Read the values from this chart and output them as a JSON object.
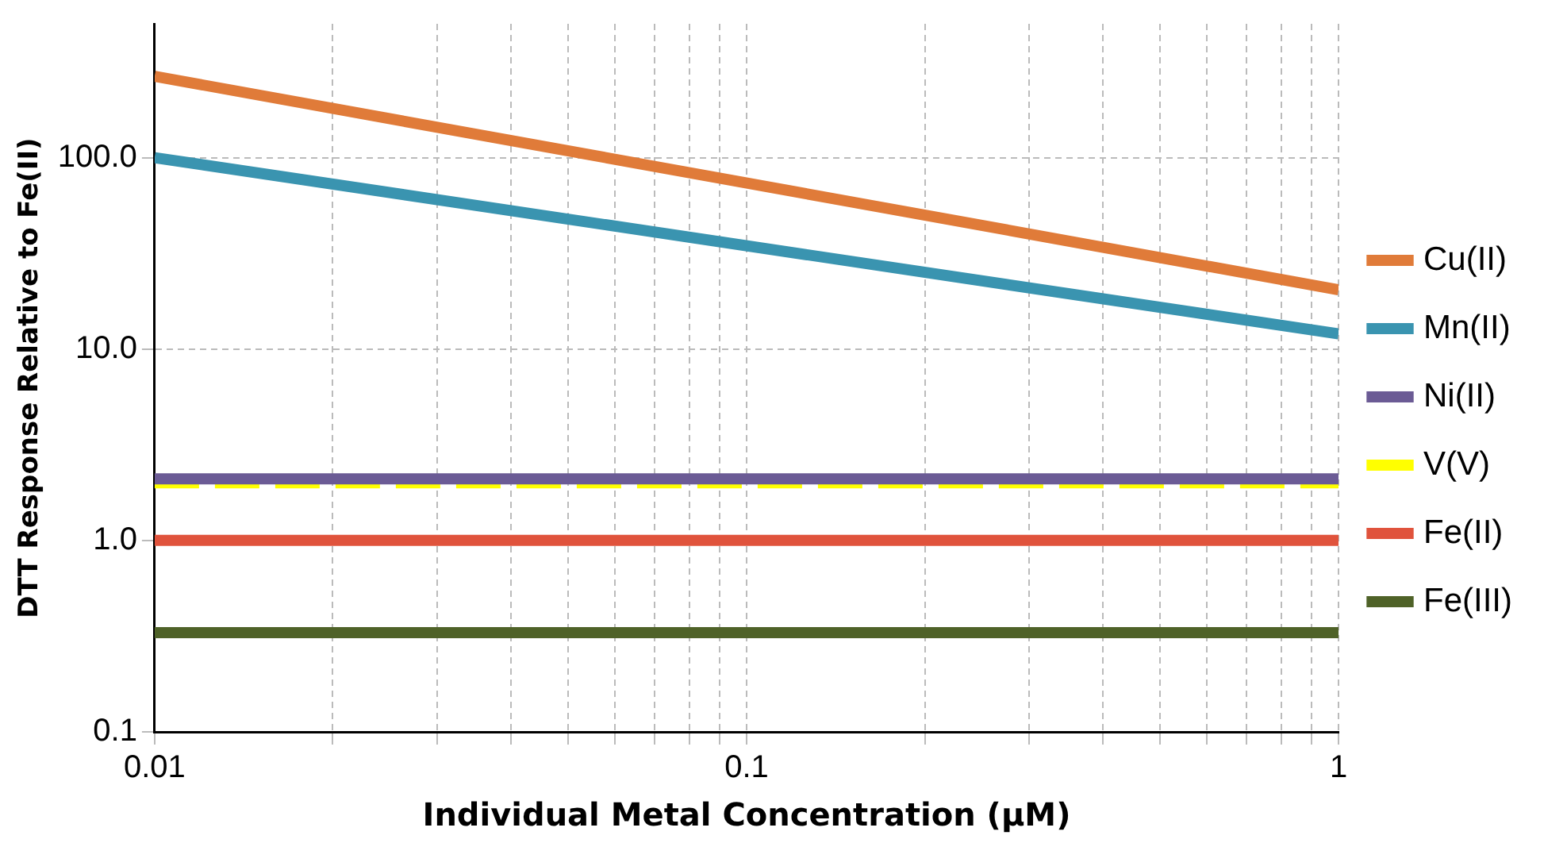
{
  "chart_data": {
    "type": "line",
    "xlabel": "Individual Metal Concentration (µM)",
    "ylabel": "DTT Response Relative to Fe(II)",
    "log": "xy",
    "x": [
      0.01,
      1
    ],
    "xlim": [
      0.01,
      1
    ],
    "ylim": [
      0.1,
      500
    ],
    "xticks": [
      0.01,
      {
        "value": 0.02,
        "label": null
      },
      {
        "value": 0.03,
        "label": null
      },
      {
        "value": 0.04,
        "label": null
      },
      {
        "value": 0.05,
        "label": null
      },
      {
        "value": 0.06,
        "label": null
      },
      {
        "value": 0.07,
        "label": null
      },
      {
        "value": 0.08,
        "label": null
      },
      {
        "value": 0.09,
        "label": null
      },
      0.1,
      {
        "value": 0.2,
        "label": null
      },
      {
        "value": 0.3,
        "label": null
      },
      {
        "value": 0.4,
        "label": null
      },
      {
        "value": 0.5,
        "label": null
      },
      {
        "value": 0.6,
        "label": null
      },
      {
        "value": 0.7,
        "label": null
      },
      {
        "value": 0.8,
        "label": null
      },
      {
        "value": 0.9,
        "label": null
      },
      1
    ],
    "yticks": [
      {
        "value": 0.1,
        "label": "0.1"
      },
      {
        "value": 1,
        "label": "1.0"
      },
      {
        "value": 10,
        "label": "10.0"
      },
      {
        "value": 100,
        "label": "100.0"
      }
    ],
    "grid": true,
    "legend": "right",
    "marker": "none",
    "series": [
      {
        "name": "Cu(II)",
        "color": "#e07b39",
        "values": [
          266,
          20.4
        ],
        "line_style": "solid"
      },
      {
        "name": "Mn(II)",
        "color": "#3a94b0",
        "values": [
          100,
          12
        ],
        "line_style": "solid"
      },
      {
        "name": "Ni(II)",
        "color": "#6b5b95",
        "values": [
          2.1,
          2.1
        ],
        "line_style": "solid"
      },
      {
        "name": "V(V)",
        "color": "#ffff00",
        "values": [
          2,
          2
        ],
        "line_style": "dashed"
      },
      {
        "name": "Fe(II)",
        "color": "#e0533c",
        "values": [
          1,
          1
        ],
        "line_style": "solid"
      },
      {
        "name": "Fe(III)",
        "color": "#4f6228",
        "values": [
          0.33,
          0.33
        ],
        "line_style": "solid"
      }
    ]
  }
}
